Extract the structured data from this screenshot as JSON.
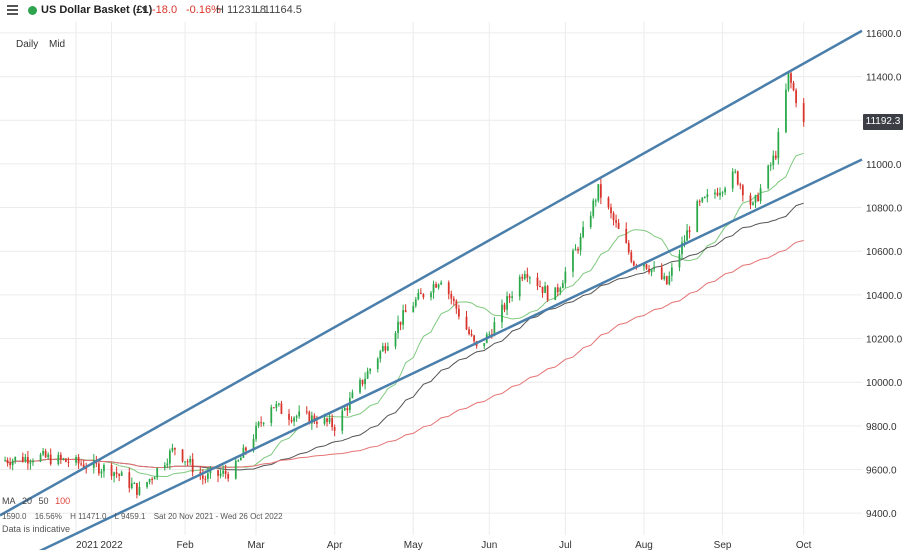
{
  "header": {
    "instrument": "US Dollar Basket (£1)",
    "change": "-18.0",
    "change_pct": "-0.16%",
    "high": "H 11231.8",
    "low": "L 11164.5",
    "timeframe": "Daily",
    "price_type": "Mid"
  },
  "current_price": "11192.3",
  "legend": {
    "ma_label": "MA",
    "ma1": "20",
    "ma2": "50",
    "ma3": "100"
  },
  "stats": {
    "value": "1590.0",
    "pct": "16.56%",
    "high": "H 11471.0",
    "low": "L 9459.1",
    "range": "Sat 20 Nov 2021 - Wed 26 Oct 2022"
  },
  "note": "Data is indicative",
  "colors": {
    "up": "#2aa84a",
    "down": "#d9342b",
    "ma20": "#7fc97f",
    "ma50": "#555555",
    "ma100": "#e57373",
    "channel": "#4a7fab"
  },
  "chart_data": {
    "type": "candlestick",
    "ylim": [
      9300,
      11650
    ],
    "y_ticks": [
      "11600.0",
      "11400.0",
      "11200.0",
      "11000.0",
      "10800.0",
      "10600.0",
      "10400.0",
      "10200.0",
      "10000.0",
      "9800.0",
      "9600.0",
      "9400.0"
    ],
    "x_ticks": [
      "2021",
      "2022",
      "Feb",
      "Mar",
      "Apr",
      "May",
      "Jun",
      "Jul",
      "Aug",
      "Sep",
      "Oct"
    ],
    "x_tick_dates": [
      "2021-12-20",
      "2022-01-03",
      "2022-02-01",
      "2022-03-01",
      "2022-04-01",
      "2022-05-02",
      "2022-06-01",
      "2022-07-01",
      "2022-08-01",
      "2022-09-01",
      "2022-10-03"
    ],
    "x_range": [
      "2021-11-20",
      "2022-10-26"
    ],
    "price_anchors": [
      [
        "2021-11-20",
        9640
      ],
      [
        "2021-12-05",
        9660
      ],
      [
        "2021-12-20",
        9630
      ],
      [
        "2022-01-03",
        9600
      ],
      [
        "2022-01-14",
        9500
      ],
      [
        "2022-01-28",
        9700
      ],
      [
        "2022-02-08",
        9560
      ],
      [
        "2022-02-20",
        9590
      ],
      [
        "2022-03-07",
        9900
      ],
      [
        "2022-03-14",
        9850
      ],
      [
        "2022-03-25",
        9830
      ],
      [
        "2022-04-01",
        9800
      ],
      [
        "2022-04-25",
        10250
      ],
      [
        "2022-05-01",
        10350
      ],
      [
        "2022-05-13",
        10480
      ],
      [
        "2022-05-27",
        10150
      ],
      [
        "2022-06-01",
        10220
      ],
      [
        "2022-06-15",
        10520
      ],
      [
        "2022-06-26",
        10380
      ],
      [
        "2022-07-07",
        10650
      ],
      [
        "2022-07-14",
        10880
      ],
      [
        "2022-07-28",
        10550
      ],
      [
        "2022-08-01",
        10550
      ],
      [
        "2022-08-10",
        10450
      ],
      [
        "2022-08-22",
        10800
      ],
      [
        "2022-09-06",
        10950
      ],
      [
        "2022-09-13",
        10800
      ],
      [
        "2022-09-22",
        11050
      ],
      [
        "2022-09-27",
        11400
      ],
      [
        "2022-10-03",
        11200
      ]
    ],
    "last_close": 11192.3,
    "series": [
      {
        "name": "MA 20",
        "type": "line",
        "period": 20
      },
      {
        "name": "MA 50",
        "type": "line",
        "period": 50
      },
      {
        "name": "MA 100",
        "type": "line",
        "period": 100
      }
    ],
    "channel_lines": [
      {
        "from": [
          "2021-11-20",
          9390
        ],
        "to": [
          "2022-10-26",
          11610
        ]
      },
      {
        "from": [
          "2021-11-20",
          9140
        ],
        "to": [
          "2022-10-26",
          11020
        ]
      }
    ],
    "grid": true
  }
}
